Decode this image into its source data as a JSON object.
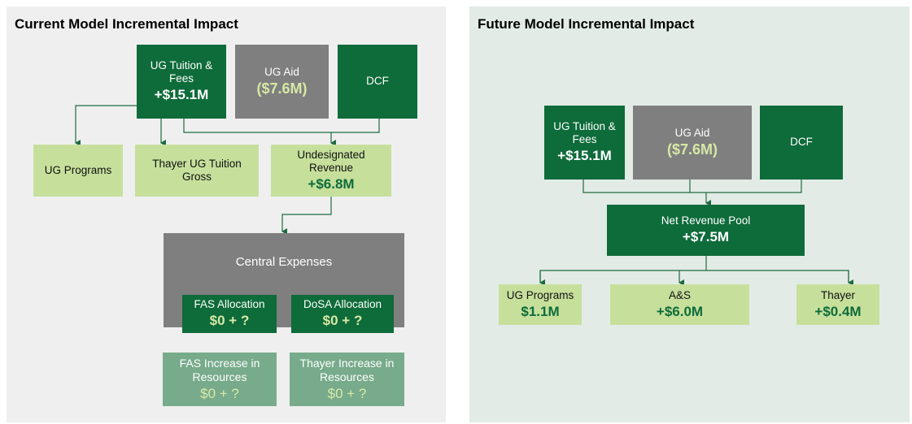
{
  "panels": [
    {
      "title": "Current Model Incremental Impact",
      "nodes": [
        {
          "label": "UG Tuition & Fees",
          "value": "+$15.1M"
        },
        {
          "label": "UG Aid",
          "value": "($7.6M)"
        },
        {
          "label": "DCF"
        },
        {
          "label": "UG Programs"
        },
        {
          "label": "Thayer UG Tuition Gross"
        },
        {
          "label": "Undesignated Revenue",
          "value": "+$6.8M"
        },
        {
          "label": "Central Expenses"
        },
        {
          "label": "FAS Allocation",
          "value": "$0 + ?"
        },
        {
          "label": "DoSA Allocation",
          "value": "$0 + ?"
        },
        {
          "label": "FAS Increase in Resources",
          "value": "$0 + ?"
        },
        {
          "label": "Thayer Increase in Resources",
          "value": "$0 + ?"
        }
      ]
    },
    {
      "title": "Future Model Incremental Impact",
      "nodes": [
        {
          "label": "UG Tuition & Fees",
          "value": "+$15.1M"
        },
        {
          "label": "UG Aid",
          "value": "($7.6M)"
        },
        {
          "label": "DCF"
        },
        {
          "label": "Net Revenue Pool",
          "value": "+$7.5M"
        },
        {
          "label": "UG Programs",
          "value": "$1.1M"
        },
        {
          "label": "A&S",
          "value": "+$6.0M"
        },
        {
          "label": "Thayer",
          "value": "+$0.4M"
        }
      ]
    }
  ]
}
